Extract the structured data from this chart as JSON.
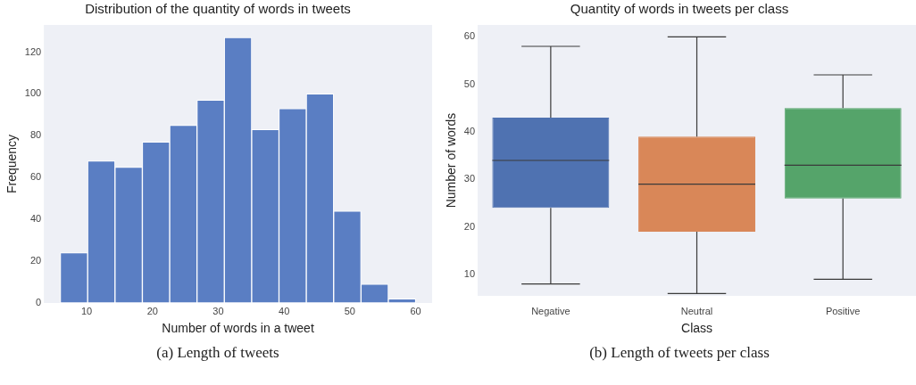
{
  "chart_data": [
    {
      "type": "histogram",
      "title": "Distribution of the quantity of words in tweets",
      "xlabel": "Number of words in a tweet",
      "ylabel": "Frequency",
      "bins": [
        6,
        10.15,
        14.31,
        18.46,
        22.62,
        26.77,
        30.92,
        35.08,
        39.23,
        43.38,
        47.54,
        51.69,
        55.85,
        60
      ],
      "values": [
        24,
        68,
        65,
        77,
        85,
        97,
        127,
        83,
        93,
        100,
        44,
        9,
        2
      ],
      "color": "#5a7ec3",
      "xlim": [
        3.5,
        62.5
      ],
      "xticks": [
        10,
        20,
        30,
        40,
        50,
        60
      ],
      "ylim": [
        0,
        133
      ],
      "yticks": [
        0,
        20,
        40,
        60,
        80,
        100,
        120
      ],
      "annotations": [
        "(a) Length of tweets"
      ]
    },
    {
      "type": "box",
      "title": "Quantity of words in tweets per class",
      "xlabel": "Class",
      "ylabel": "Number of words",
      "categories": [
        "Negative",
        "Neutral",
        "Positive"
      ],
      "colors": [
        "#4f72b1",
        "#d98758",
        "#55a46a"
      ],
      "boxes": [
        {
          "low": 8,
          "q1": 24,
          "median": 34,
          "q3": 43,
          "high": 58
        },
        {
          "low": 6,
          "q1": 19,
          "median": 29,
          "q3": 39,
          "high": 60
        },
        {
          "low": 9,
          "q1": 26,
          "median": 33,
          "q3": 45,
          "high": 52
        }
      ],
      "ylim": [
        5.5,
        62.5
      ],
      "yticks": [
        10,
        20,
        30,
        40,
        50,
        60
      ],
      "annotations": [
        "(b) Length of tweets per class"
      ]
    }
  ]
}
